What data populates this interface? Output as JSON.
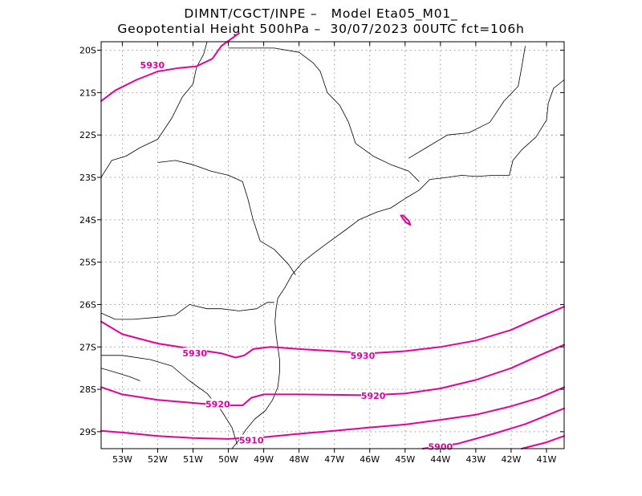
{
  "title": {
    "line1": "DIMNT/CGCT/INPE –   Model Eta05_M01_",
    "line2": "Geopotential Height 500hPa –  30/07/2023 00UTC fct=106h"
  },
  "colors": {
    "contour": "#e6009a",
    "coast": "#000000",
    "grid": "#999999",
    "frame": "#000000"
  },
  "map": {
    "lon_range": [
      -53.6,
      -40.5
    ],
    "lat_range": [
      -29.4,
      -19.8
    ],
    "lon_ticks": [
      {
        "value": -53,
        "label": "53W"
      },
      {
        "value": -52,
        "label": "52W"
      },
      {
        "value": -51,
        "label": "51W"
      },
      {
        "value": -50,
        "label": "50W"
      },
      {
        "value": -49,
        "label": "49W"
      },
      {
        "value": -48,
        "label": "48W"
      },
      {
        "value": -47,
        "label": "47W"
      },
      {
        "value": -46,
        "label": "46W"
      },
      {
        "value": -45,
        "label": "45W"
      },
      {
        "value": -44,
        "label": "44W"
      },
      {
        "value": -43,
        "label": "43W"
      },
      {
        "value": -42,
        "label": "42W"
      },
      {
        "value": -41,
        "label": "41W"
      }
    ],
    "lat_ticks": [
      {
        "value": -20,
        "label": "20S"
      },
      {
        "value": -21,
        "label": "21S"
      },
      {
        "value": -22,
        "label": "22S"
      },
      {
        "value": -23,
        "label": "23S"
      },
      {
        "value": -24,
        "label": "24S"
      },
      {
        "value": -25,
        "label": "25S"
      },
      {
        "value": -26,
        "label": "26S"
      },
      {
        "value": -27,
        "label": "27S"
      },
      {
        "value": -28,
        "label": "28S"
      },
      {
        "value": -29,
        "label": "29S"
      }
    ],
    "grid": true,
    "contour_labels": [
      {
        "text": "5930",
        "lon": -52.15,
        "lat": -20.35
      },
      {
        "text": "5930",
        "lon": -50.95,
        "lat": -27.15
      },
      {
        "text": "5930",
        "lon": -46.2,
        "lat": -27.2
      },
      {
        "text": "5920",
        "lon": -50.3,
        "lat": -28.35
      },
      {
        "text": "5920",
        "lon": -45.9,
        "lat": -28.15
      },
      {
        "text": "5910",
        "lon": -49.35,
        "lat": -29.2
      },
      {
        "text": "5900",
        "lon": -44.0,
        "lat": -29.35
      }
    ],
    "contours": [
      {
        "name": "5930-north",
        "points": [
          [
            -53.6,
            -21.2
          ],
          [
            -53.2,
            -20.95
          ],
          [
            -52.6,
            -20.7
          ],
          [
            -52.0,
            -20.5
          ],
          [
            -51.4,
            -20.42
          ],
          [
            -50.9,
            -20.38
          ],
          [
            -50.45,
            -20.2
          ],
          [
            -50.2,
            -19.9
          ],
          [
            -49.7,
            -19.6
          ]
        ]
      },
      {
        "name": "5930-south",
        "points": [
          [
            -53.6,
            -26.4
          ],
          [
            -53.0,
            -26.7
          ],
          [
            -52.0,
            -26.92
          ],
          [
            -51.0,
            -27.05
          ],
          [
            -50.2,
            -27.15
          ],
          [
            -49.8,
            -27.25
          ],
          [
            -49.55,
            -27.2
          ],
          [
            -49.3,
            -27.05
          ],
          [
            -48.8,
            -27.0
          ],
          [
            -48.0,
            -27.05
          ],
          [
            -47.0,
            -27.1
          ],
          [
            -46.0,
            -27.15
          ],
          [
            -45.0,
            -27.1
          ],
          [
            -44.0,
            -27.0
          ],
          [
            -43.0,
            -26.85
          ],
          [
            -42.0,
            -26.6
          ],
          [
            -41.2,
            -26.3
          ],
          [
            -40.5,
            -26.05
          ]
        ]
      },
      {
        "name": "5920",
        "points": [
          [
            -53.6,
            -27.95
          ],
          [
            -53.0,
            -28.12
          ],
          [
            -52.0,
            -28.25
          ],
          [
            -51.0,
            -28.32
          ],
          [
            -50.2,
            -28.38
          ],
          [
            -49.6,
            -28.38
          ],
          [
            -49.35,
            -28.2
          ],
          [
            -49.0,
            -28.12
          ],
          [
            -48.0,
            -28.12
          ],
          [
            -47.0,
            -28.13
          ],
          [
            -46.0,
            -28.14
          ],
          [
            -45.0,
            -28.1
          ],
          [
            -44.0,
            -27.98
          ],
          [
            -43.0,
            -27.78
          ],
          [
            -42.0,
            -27.5
          ],
          [
            -41.2,
            -27.2
          ],
          [
            -40.5,
            -26.95
          ]
        ]
      },
      {
        "name": "5910",
        "points": [
          [
            -53.6,
            -28.98
          ],
          [
            -53.0,
            -29.02
          ],
          [
            -52.0,
            -29.1
          ],
          [
            -51.0,
            -29.15
          ],
          [
            -50.0,
            -29.17
          ],
          [
            -49.6,
            -29.15
          ],
          [
            -49.0,
            -29.13
          ],
          [
            -48.0,
            -29.05
          ],
          [
            -47.0,
            -28.98
          ],
          [
            -46.0,
            -28.9
          ],
          [
            -45.0,
            -28.83
          ],
          [
            -44.0,
            -28.72
          ],
          [
            -43.0,
            -28.6
          ],
          [
            -42.0,
            -28.4
          ],
          [
            -41.2,
            -28.2
          ],
          [
            -40.5,
            -27.95
          ]
        ]
      },
      {
        "name": "5900",
        "points": [
          [
            -44.5,
            -29.4
          ],
          [
            -43.5,
            -29.28
          ],
          [
            -42.5,
            -29.05
          ],
          [
            -41.6,
            -28.82
          ],
          [
            -40.5,
            -28.45
          ]
        ]
      },
      {
        "name": "5890",
        "points": [
          [
            -41.7,
            -29.4
          ],
          [
            -41.0,
            -29.25
          ],
          [
            -40.5,
            -29.1
          ]
        ]
      },
      {
        "name": "island-loop",
        "points": [
          [
            -45.12,
            -23.9
          ],
          [
            -44.98,
            -24.06
          ],
          [
            -44.85,
            -24.12
          ],
          [
            -44.9,
            -24.02
          ],
          [
            -45.05,
            -23.9
          ],
          [
            -45.12,
            -23.9
          ]
        ]
      }
    ],
    "coastlines": [
      {
        "name": "coast",
        "points": [
          [
            -49.9,
            -29.4
          ],
          [
            -49.7,
            -29.2
          ],
          [
            -49.5,
            -28.95
          ],
          [
            -49.25,
            -28.7
          ],
          [
            -48.95,
            -28.5
          ],
          [
            -48.75,
            -28.25
          ],
          [
            -48.6,
            -27.95
          ],
          [
            -48.55,
            -27.6
          ],
          [
            -48.55,
            -27.3
          ],
          [
            -48.6,
            -27.0
          ],
          [
            -48.65,
            -26.7
          ],
          [
            -48.68,
            -26.4
          ],
          [
            -48.65,
            -26.1
          ],
          [
            -48.6,
            -25.85
          ],
          [
            -48.4,
            -25.6
          ],
          [
            -48.2,
            -25.3
          ],
          [
            -47.9,
            -25.0
          ],
          [
            -47.6,
            -24.8
          ],
          [
            -47.2,
            -24.55
          ],
          [
            -46.7,
            -24.25
          ],
          [
            -46.3,
            -24.0
          ],
          [
            -45.8,
            -23.82
          ],
          [
            -45.4,
            -23.72
          ],
          [
            -45.0,
            -23.5
          ],
          [
            -44.6,
            -23.3
          ],
          [
            -44.3,
            -23.05
          ],
          [
            -43.8,
            -23.0
          ],
          [
            -43.4,
            -22.95
          ],
          [
            -43.0,
            -22.98
          ],
          [
            -42.5,
            -22.95
          ],
          [
            -42.05,
            -22.95
          ],
          [
            -41.95,
            -22.6
          ],
          [
            -41.7,
            -22.35
          ],
          [
            -41.3,
            -22.05
          ],
          [
            -41.0,
            -21.65
          ],
          [
            -40.95,
            -21.25
          ],
          [
            -40.8,
            -20.9
          ],
          [
            -40.5,
            -20.7
          ]
        ]
      },
      {
        "name": "border-ms-sp",
        "points": [
          [
            -53.6,
            -23.0
          ],
          [
            -53.3,
            -22.6
          ],
          [
            -52.9,
            -22.5
          ],
          [
            -52.5,
            -22.3
          ],
          [
            -52.0,
            -22.1
          ],
          [
            -51.6,
            -21.6
          ],
          [
            -51.3,
            -21.1
          ],
          [
            -51.0,
            -20.8
          ],
          [
            -50.9,
            -20.4
          ],
          [
            -50.7,
            -20.1
          ],
          [
            -50.6,
            -19.8
          ]
        ]
      },
      {
        "name": "border-pr-sp",
        "points": [
          [
            -52.0,
            -22.65
          ],
          [
            -51.5,
            -22.6
          ],
          [
            -51.0,
            -22.7
          ],
          [
            -50.5,
            -22.85
          ],
          [
            -50.0,
            -22.95
          ],
          [
            -49.6,
            -23.1
          ],
          [
            -49.45,
            -23.5
          ],
          [
            -49.3,
            -24.0
          ],
          [
            -49.1,
            -24.5
          ],
          [
            -48.7,
            -24.7
          ],
          [
            -48.3,
            -25.05
          ],
          [
            -48.1,
            -25.3
          ]
        ]
      },
      {
        "name": "border-sp-mg",
        "points": [
          [
            -50.0,
            -19.95
          ],
          [
            -49.3,
            -19.95
          ],
          [
            -48.7,
            -19.95
          ],
          [
            -48.0,
            -20.05
          ],
          [
            -47.6,
            -20.3
          ],
          [
            -47.4,
            -20.5
          ],
          [
            -47.2,
            -21.0
          ],
          [
            -46.85,
            -21.3
          ],
          [
            -46.6,
            -21.7
          ],
          [
            -46.4,
            -22.2
          ],
          [
            -45.9,
            -22.5
          ],
          [
            -45.4,
            -22.7
          ],
          [
            -44.9,
            -22.85
          ],
          [
            -44.6,
            -23.1
          ]
        ]
      },
      {
        "name": "border-mg-rj-es",
        "points": [
          [
            -44.9,
            -22.55
          ],
          [
            -44.4,
            -22.3
          ],
          [
            -43.8,
            -22.0
          ],
          [
            -43.2,
            -21.95
          ],
          [
            -42.6,
            -21.7
          ],
          [
            -42.2,
            -21.2
          ],
          [
            -41.8,
            -20.85
          ],
          [
            -41.7,
            -20.4
          ],
          [
            -41.6,
            -19.9
          ]
        ]
      },
      {
        "name": "border-pr-sc",
        "points": [
          [
            -53.6,
            -26.2
          ],
          [
            -53.2,
            -26.35
          ],
          [
            -52.7,
            -26.35
          ],
          [
            -52.0,
            -26.3
          ],
          [
            -51.5,
            -26.25
          ],
          [
            -51.1,
            -26.0
          ],
          [
            -50.6,
            -26.1
          ],
          [
            -50.2,
            -26.1
          ],
          [
            -49.7,
            -26.15
          ],
          [
            -49.2,
            -26.1
          ],
          [
            -48.9,
            -25.95
          ],
          [
            -48.7,
            -25.95
          ]
        ]
      },
      {
        "name": "border-sc-rs",
        "points": [
          [
            -53.6,
            -27.2
          ],
          [
            -53.0,
            -27.2
          ],
          [
            -52.2,
            -27.3
          ],
          [
            -51.6,
            -27.45
          ],
          [
            -51.1,
            -27.8
          ],
          [
            -50.6,
            -28.1
          ],
          [
            -50.2,
            -28.5
          ],
          [
            -49.9,
            -28.9
          ],
          [
            -49.75,
            -29.3
          ]
        ]
      },
      {
        "name": "border-rs-west",
        "points": [
          [
            -53.6,
            -27.5
          ],
          [
            -53.2,
            -27.6
          ],
          [
            -52.8,
            -27.7
          ],
          [
            -52.5,
            -27.8
          ]
        ]
      }
    ]
  }
}
